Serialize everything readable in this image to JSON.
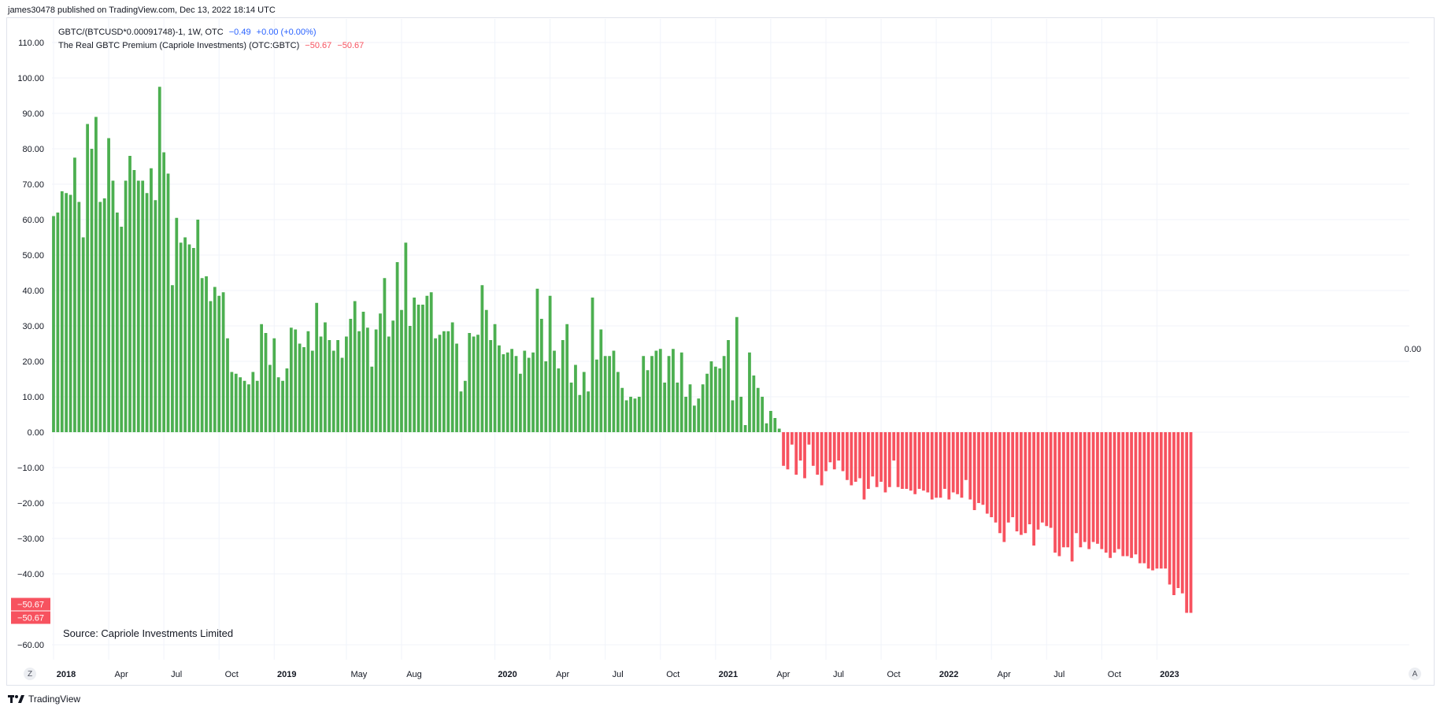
{
  "header": {
    "published": "james30478 published on TradingView.com, Dec 13, 2022 18:14 UTC"
  },
  "legend": {
    "line1": {
      "symbol": "GBTC/(BTCUSD*0.00091748)-1, 1W, OTC",
      "value": "−0.49",
      "change": "+0.00 (+0.00%)"
    },
    "line2": {
      "name": "The Real GBTC Premium (Capriole Investments) (OTC:GBTC)",
      "value1": "−50.67",
      "value2": "−50.67"
    }
  },
  "source_note": "Source: Capriole Investments Limited",
  "footer": {
    "brand": "TradingView"
  },
  "buttons": {
    "left": "Z",
    "right": "A"
  },
  "colors": {
    "positive": "#4caf50",
    "negative": "#f7525f",
    "blue": "#2962ff"
  },
  "chart_data": {
    "type": "bar",
    "title": "",
    "xlabel": "",
    "ylabel": "",
    "ylim": [
      -63,
      113
    ],
    "grid": true,
    "y_ticks": [
      "110.00",
      "100.00",
      "90.00",
      "80.00",
      "70.00",
      "60.00",
      "50.00",
      "40.00",
      "30.00",
      "20.00",
      "10.00",
      "0.00",
      "−10.00",
      "−20.00",
      "−30.00",
      "−40.00",
      "−60.00"
    ],
    "x_ticks": [
      {
        "label": "2018",
        "week": 0
      },
      {
        "label": "Apr",
        "week": 13
      },
      {
        "label": "Jul",
        "week": 26
      },
      {
        "label": "Oct",
        "week": 39
      },
      {
        "label": "2019",
        "week": 52
      },
      {
        "label": "May",
        "week": 69
      },
      {
        "label": "Aug",
        "week": 82
      },
      {
        "label": "2020",
        "week": 104
      },
      {
        "label": "Apr",
        "week": 117
      },
      {
        "label": "Jul",
        "week": 130
      },
      {
        "label": "Oct",
        "week": 143
      },
      {
        "label": "2021",
        "week": 156
      },
      {
        "label": "Apr",
        "week": 169
      },
      {
        "label": "Jul",
        "week": 182
      },
      {
        "label": "Oct",
        "week": 195
      },
      {
        "label": "2022",
        "week": 208
      },
      {
        "label": "Apr",
        "week": 221
      },
      {
        "label": "Jul",
        "week": 234
      },
      {
        "label": "Oct",
        "week": 247
      },
      {
        "label": "2023",
        "week": 260
      }
    ],
    "right_axis_label": "0.00",
    "last_value_labels": [
      "−50.67",
      "−50.67"
    ],
    "series": [
      {
        "values": [
          61,
          62,
          68,
          67.5,
          67,
          77.5,
          65,
          55,
          87,
          80,
          89,
          65,
          66,
          83,
          71,
          62,
          58,
          71,
          78,
          74,
          71,
          71,
          67.5,
          74.5,
          65.5,
          97.5,
          79,
          73,
          41.5,
          60.5,
          53.5,
          55,
          53,
          52,
          60,
          43.5,
          44,
          37,
          41,
          38.5,
          39.5,
          26.5,
          17,
          16.5,
          15.5,
          14.5,
          13.5,
          17,
          14.5,
          30.5,
          28,
          19,
          26.5,
          15.5,
          14.5,
          18,
          29.5,
          29,
          25,
          24,
          28.5,
          23,
          36.5,
          27,
          31,
          26,
          23,
          26,
          21,
          27,
          32,
          37,
          28.5,
          34,
          29.5,
          18.5,
          29,
          33.5,
          43.5,
          27,
          31.5,
          48,
          34.5,
          53.5,
          30,
          38,
          36,
          36,
          38.5,
          39.5,
          26.5,
          27.5,
          28.5,
          28.5,
          31,
          25,
          11.5,
          14.5,
          28,
          27,
          27.5,
          41.5,
          34.5,
          26,
          30.5,
          24.5,
          22,
          22.5,
          23.5,
          21.5,
          16.5,
          23,
          21,
          22.5,
          40.5,
          32,
          20,
          38.5,
          23,
          18,
          26,
          30.5,
          14,
          19,
          10.5,
          17,
          11.5,
          38,
          20.5,
          29,
          21.5,
          21.5,
          23,
          17,
          12.5,
          9,
          10,
          9.5,
          10,
          21.5,
          17.5,
          21.5,
          23,
          23.5,
          14,
          21.5,
          23.5,
          14,
          22.5,
          10,
          13.5,
          7.5,
          9.5,
          13.5,
          16.5,
          20,
          18.5,
          18,
          21.5,
          26,
          9,
          32.5,
          10,
          2,
          22.5,
          16,
          12.5,
          10,
          2.5,
          6,
          4,
          1,
          -9.5,
          -10.5,
          -3.5,
          -12,
          -8,
          -13,
          -3.5,
          -9.5,
          -12,
          -15,
          -11,
          -8.5,
          -10.5,
          -8,
          -11,
          -13.5,
          -15,
          -14,
          -13,
          -19,
          -16,
          -12.5,
          -15.5,
          -14,
          -17,
          -15.5,
          -8,
          -15.5,
          -16,
          -16,
          -16.5,
          -17.5,
          -16,
          -16.5,
          -17,
          -19,
          -18.5,
          -18.5,
          -16,
          -19,
          -17,
          -17.5,
          -18.5,
          -13.5,
          -19,
          -22,
          -20,
          -20.5,
          -23,
          -24,
          -25.5,
          -28.5,
          -31,
          -25.5,
          -24,
          -28,
          -29,
          -28.5,
          -26,
          -32,
          -27.5,
          -25.5,
          -26.5,
          -27,
          -34,
          -35,
          -32.5,
          -32.5,
          -36.5,
          -28.5,
          -32.5,
          -31,
          -33,
          -31,
          -31.5,
          -33,
          -34,
          -35.5,
          -34,
          -33,
          -35,
          -35,
          -35.5,
          -34.5,
          -37,
          -37,
          -38.5,
          -39,
          -38.5,
          -38.5,
          -38.5,
          -43,
          -46,
          -44,
          -45.5,
          -51,
          -51
        ]
      }
    ]
  }
}
